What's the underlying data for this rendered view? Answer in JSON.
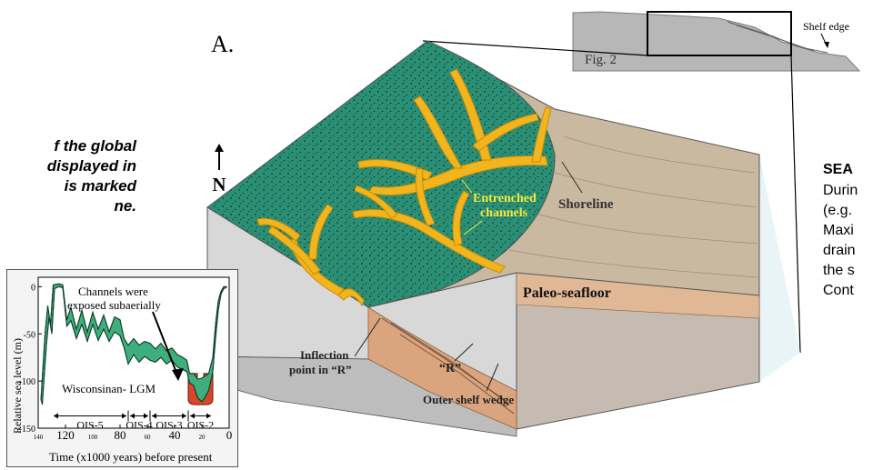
{
  "panel_label": "A.",
  "left_caption": {
    "lines": [
      "f the global",
      "displayed in",
      "is marked",
      "ne."
    ]
  },
  "right_panel": {
    "title": "SEA",
    "lines": [
      "Durin",
      "(e.g.",
      "Maxi",
      "drain",
      "the s",
      "Cont"
    ]
  },
  "north_arrow": {
    "label": "N",
    "icon": "north-arrow-icon"
  },
  "block_diagram": {
    "labels": {
      "channels_line1": "Entrenched",
      "channels_line2": "channels",
      "shoreline": "Shoreline",
      "paleo_seafloor": "Paleo-seafloor",
      "inflection_line1": "Inflection",
      "inflection_line2": "point in “R”",
      "r_label": "“R”",
      "outer_shelf": "Outer shelf wedge"
    },
    "colors": {
      "land": "#2b8f76",
      "channels": "#f2b51e",
      "seafloor": "#c9b9a1",
      "sediment": "#d9a47e"
    }
  },
  "profile": {
    "fig_label": "Fig. 2",
    "shelf_edge": "Shelf edge"
  },
  "inset": {
    "annotation_exposed_line1": "Channels were",
    "annotation_exposed_line2": "exposed subaerially",
    "annotation_lgm": "Wisconsinan- LGM",
    "colors": {
      "band": "#3fae7e",
      "lgm": "#d8472a"
    }
  },
  "chart_data": {
    "type": "area",
    "title": "",
    "xlabel": "Time (x1000 years) before present",
    "ylabel": "Relative sea level (m)",
    "xlim": [
      140,
      0
    ],
    "ylim": [
      -150,
      10
    ],
    "x_ticks": [
      {
        "v": 140,
        "label": "140",
        "major": false
      },
      {
        "v": 120,
        "label": "120",
        "major": true
      },
      {
        "v": 100,
        "label": "100",
        "major": false
      },
      {
        "v": 80,
        "label": "80",
        "major": true
      },
      {
        "v": 60,
        "label": "60",
        "major": false
      },
      {
        "v": 40,
        "label": "40",
        "major": true
      },
      {
        "v": 20,
        "label": "20",
        "major": false
      },
      {
        "v": 0,
        "label": "0",
        "major": true
      }
    ],
    "y_ticks": [
      {
        "v": 0,
        "label": "0"
      },
      {
        "v": -50,
        "label": "-50"
      },
      {
        "v": -100,
        "label": "-100"
      },
      {
        "v": -150,
        "label": "-150"
      }
    ],
    "stages": [
      {
        "label": "OIS-5",
        "from": 130,
        "to": 74
      },
      {
        "label": "OIS-4",
        "from": 74,
        "to": 58
      },
      {
        "label": "OIS-3",
        "from": 58,
        "to": 30
      },
      {
        "label": "OIS-2",
        "from": 30,
        "to": 12
      }
    ],
    "sea_level_upper": [
      [
        138,
        -120
      ],
      [
        135,
        -50
      ],
      [
        133,
        -20
      ],
      [
        131,
        -40
      ],
      [
        129,
        2
      ],
      [
        125,
        3
      ],
      [
        122,
        2
      ],
      [
        119,
        -35
      ],
      [
        116,
        -22
      ],
      [
        112,
        -45
      ],
      [
        108,
        -25
      ],
      [
        104,
        -48
      ],
      [
        100,
        -27
      ],
      [
        96,
        -45
      ],
      [
        92,
        -30
      ],
      [
        88,
        -48
      ],
      [
        84,
        -32
      ],
      [
        80,
        -35
      ],
      [
        77,
        -55
      ],
      [
        74,
        -62
      ],
      [
        70,
        -55
      ],
      [
        66,
        -62
      ],
      [
        62,
        -58
      ],
      [
        58,
        -60
      ],
      [
        54,
        -66
      ],
      [
        50,
        -60
      ],
      [
        46,
        -68
      ],
      [
        42,
        -65
      ],
      [
        38,
        -72
      ],
      [
        34,
        -75
      ],
      [
        31,
        -78
      ],
      [
        29,
        -92
      ],
      [
        26,
        -92
      ],
      [
        23,
        -98
      ],
      [
        20,
        -97
      ],
      [
        18,
        -95
      ],
      [
        15,
        -92
      ],
      [
        12,
        -75
      ],
      [
        10,
        -40
      ],
      [
        8,
        -15
      ],
      [
        6,
        -5
      ],
      [
        4,
        0
      ],
      [
        2,
        0
      ]
    ],
    "sea_level_lower": [
      [
        137,
        -125
      ],
      [
        134,
        -62
      ],
      [
        132,
        -32
      ],
      [
        130,
        -50
      ],
      [
        128,
        -2
      ],
      [
        125,
        0
      ],
      [
        122,
        -1
      ],
      [
        119,
        -42
      ],
      [
        116,
        -36
      ],
      [
        112,
        -55
      ],
      [
        108,
        -40
      ],
      [
        104,
        -58
      ],
      [
        100,
        -40
      ],
      [
        96,
        -57
      ],
      [
        92,
        -45
      ],
      [
        88,
        -58
      ],
      [
        84,
        -48
      ],
      [
        80,
        -52
      ],
      [
        77,
        -65
      ],
      [
        74,
        -82
      ],
      [
        70,
        -72
      ],
      [
        66,
        -80
      ],
      [
        62,
        -74
      ],
      [
        58,
        -78
      ],
      [
        54,
        -80
      ],
      [
        50,
        -75
      ],
      [
        46,
        -82
      ],
      [
        42,
        -78
      ],
      [
        38,
        -85
      ],
      [
        34,
        -88
      ],
      [
        31,
        -90
      ],
      [
        29,
        -102
      ],
      [
        26,
        -105
      ],
      [
        23,
        -118
      ],
      [
        20,
        -122
      ],
      [
        18,
        -118
      ],
      [
        15,
        -110
      ],
      [
        12,
        -90
      ],
      [
        10,
        -55
      ],
      [
        8,
        -25
      ],
      [
        6,
        -8
      ],
      [
        4,
        -2
      ],
      [
        2,
        -1
      ]
    ],
    "lgm_window": {
      "x": [
        30,
        12
      ],
      "y_bottom": -125
    }
  }
}
